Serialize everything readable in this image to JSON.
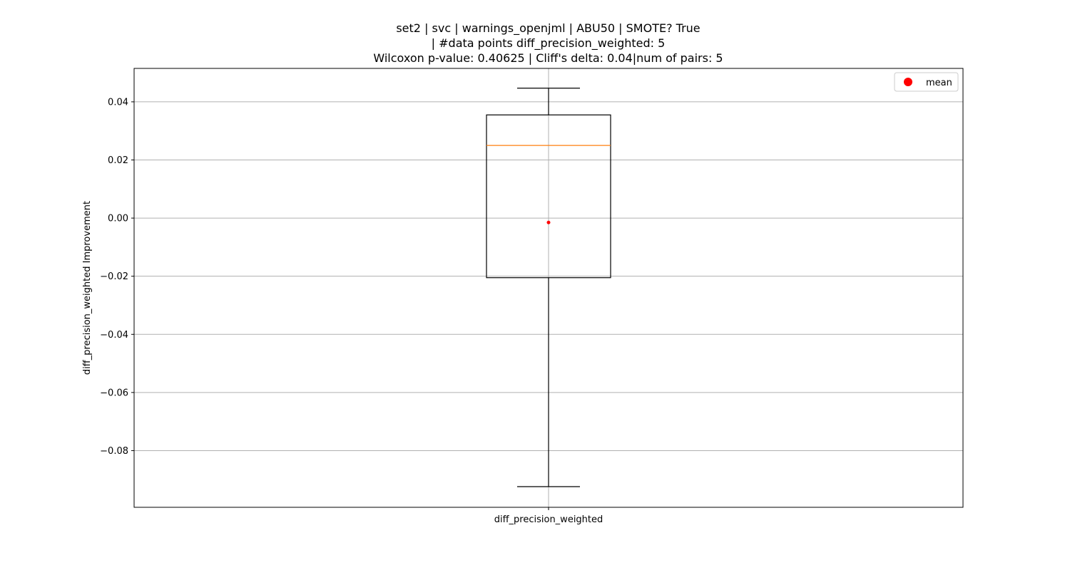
{
  "chart_data": {
    "type": "box",
    "title_lines": [
      "set2 | svc | warnings_openjml | ABU50 | SMOTE? True",
      "| #data points diff_precision_weighted: 5",
      "Wilcoxon p-value: 0.40625 | Cliff's delta: 0.04|num of pairs: 5"
    ],
    "xlabel": "",
    "ylabel": "diff_precision_weighted Improvement",
    "categories": [
      "diff_precision_weighted"
    ],
    "ylim": [
      -0.0995,
      0.0515
    ],
    "yticks": [
      -0.08,
      -0.06,
      -0.04,
      -0.02,
      0.0,
      0.02,
      0.04
    ],
    "ytick_labels": [
      "−0.08",
      "−0.06",
      "−0.04",
      "−0.02",
      "0.00",
      "0.02",
      "0.04"
    ],
    "grid": true,
    "box": {
      "whisker_low": -0.0924,
      "q1": -0.0205,
      "median": 0.025,
      "q3": 0.0355,
      "whisker_high": 0.0447,
      "mean": -0.0015
    },
    "legend": {
      "placement": "top-right",
      "entries": [
        {
          "label": "mean",
          "color": "#ff0000",
          "marker": "circle"
        }
      ]
    },
    "colors": {
      "box": "#000000",
      "median": "#ff7f0e",
      "mean": "#ff0000",
      "grid": "#b0b0b0"
    }
  }
}
